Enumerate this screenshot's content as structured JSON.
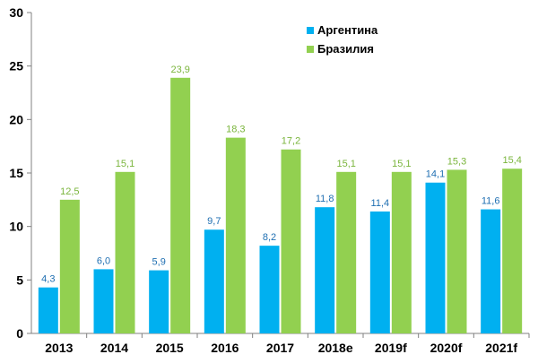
{
  "chart_data": {
    "type": "bar",
    "categories": [
      "2013",
      "2014",
      "2015",
      "2016",
      "2017",
      "2018e",
      "2019f",
      "2020f",
      "2021f"
    ],
    "series": [
      {
        "name": "Аргентина",
        "color": "#00b0f0",
        "label_color": "#1f6fb2",
        "values": [
          4.3,
          6.0,
          5.9,
          9.7,
          8.2,
          11.8,
          11.4,
          14.1,
          11.6
        ],
        "labels": [
          "4,3",
          "6,0",
          "5,9",
          "9,7",
          "8,2",
          "11,8",
          "11,4",
          "14,1",
          "11,6"
        ]
      },
      {
        "name": "Бразилия",
        "color": "#92d050",
        "label_color": "#7ab53c",
        "values": [
          12.5,
          15.1,
          23.9,
          18.3,
          17.2,
          15.1,
          15.1,
          15.3,
          15.4
        ],
        "labels": [
          "12,5",
          "15,1",
          "23,9",
          "18,3",
          "17,2",
          "15,1",
          "15,1",
          "15,3",
          "15,4"
        ]
      }
    ],
    "ylim": [
      0,
      30
    ],
    "yticks": [
      "0",
      "5",
      "10",
      "15",
      "20",
      "25",
      "30"
    ],
    "grid": false,
    "legend_position": "top-right"
  }
}
